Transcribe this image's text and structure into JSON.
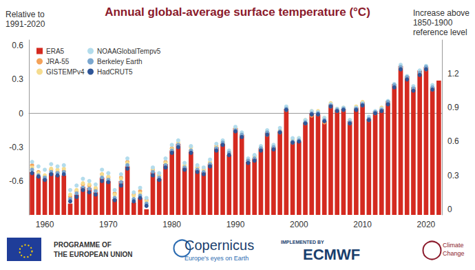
{
  "chart_data": {
    "type": "bar",
    "title": "Annual global-average surface temperature (°C)",
    "ylabel": "Relative to\n1991-2020",
    "y2label": "Increase above\n1850-1900\nreference level",
    "categories": [
      null,
      null,
      "1960",
      null,
      null,
      null,
      null,
      null,
      null,
      null,
      null,
      null,
      "1970",
      null,
      null,
      null,
      null,
      null,
      null,
      null,
      null,
      null,
      "1980",
      null,
      null,
      null,
      null,
      null,
      null,
      null,
      null,
      null,
      "1990",
      null,
      null,
      null,
      null,
      null,
      null,
      null,
      null,
      null,
      "2000",
      null,
      null,
      null,
      null,
      null,
      null,
      null,
      null,
      null,
      "2010",
      null,
      null,
      null,
      null,
      null,
      null,
      null,
      null,
      null,
      "2020",
      null,
      null
    ],
    "ylim": [
      -0.9,
      0.65
    ],
    "yticks": [
      -0.6,
      -0.3,
      0,
      0.3,
      0.6
    ],
    "y2lim": [
      -0.05,
      1.5
    ],
    "y2ticks": [
      0,
      0.3,
      0.6,
      0.9,
      1.2
    ],
    "grid": false,
    "legend": "top-left",
    "series": [
      {
        "name": "ERA5",
        "type": "bar",
        "color": "#d42a20",
        "values": [
          -0.52,
          -0.56,
          -0.58,
          -0.53,
          -0.55,
          -0.55,
          -0.8,
          -0.72,
          -0.65,
          -0.66,
          -0.7,
          -0.57,
          -0.6,
          -0.76,
          -0.6,
          -0.47,
          -0.79,
          -0.75,
          -0.85,
          -0.52,
          -0.58,
          -0.45,
          -0.33,
          -0.27,
          -0.48,
          -0.34,
          -0.5,
          -0.52,
          -0.45,
          -0.3,
          -0.27,
          -0.37,
          -0.13,
          -0.19,
          -0.43,
          -0.4,
          -0.31,
          -0.17,
          -0.3,
          -0.16,
          0.04,
          -0.25,
          -0.25,
          -0.08,
          0.0,
          -0.01,
          -0.07,
          0.08,
          0.03,
          0.04,
          -0.07,
          0.05,
          0.1,
          -0.05,
          0.02,
          0.04,
          0.11,
          0.26,
          0.42,
          0.33,
          0.23,
          0.38,
          0.41,
          0.23,
          0.29
        ]
      },
      {
        "name": "JRA-55",
        "type": "scatter",
        "marker": "circle",
        "color": "#f4a259",
        "values": [
          -0.46,
          -0.52,
          -0.56,
          -0.5,
          -0.52,
          -0.51,
          -0.74,
          -0.69,
          -0.63,
          -0.64,
          -0.67,
          -0.54,
          -0.57,
          -0.71,
          -0.57,
          -0.43,
          -0.72,
          -0.69,
          -0.77,
          -0.5,
          -0.55,
          -0.43,
          -0.31,
          -0.29,
          -0.47,
          -0.33,
          -0.48,
          -0.5,
          -0.44,
          -0.29,
          -0.27,
          -0.36,
          -0.15,
          -0.2,
          -0.42,
          -0.38,
          -0.31,
          -0.19,
          -0.31,
          -0.17,
          0.03,
          -0.26,
          -0.24,
          -0.09,
          -0.02,
          -0.01,
          -0.08,
          0.06,
          0.02,
          0.03,
          -0.09,
          0.04,
          0.07,
          -0.06,
          0.0,
          0.03,
          0.09,
          0.24,
          0.4,
          0.31,
          0.21,
          0.35,
          0.39,
          0.21,
          null
        ]
      },
      {
        "name": "GISTEMPv4",
        "type": "scatter",
        "marker": "circle",
        "color": "#f5dc8f",
        "values": [
          -0.48,
          -0.53,
          -0.55,
          -0.49,
          -0.5,
          -0.49,
          -0.72,
          -0.68,
          -0.62,
          -0.63,
          -0.66,
          -0.54,
          -0.56,
          -0.72,
          -0.58,
          -0.44,
          -0.73,
          -0.71,
          -0.78,
          -0.49,
          -0.55,
          -0.44,
          -0.32,
          -0.26,
          -0.46,
          -0.3,
          -0.48,
          -0.5,
          -0.43,
          -0.3,
          -0.25,
          -0.34,
          -0.13,
          -0.18,
          -0.41,
          -0.39,
          -0.3,
          -0.16,
          -0.29,
          -0.15,
          0.05,
          -0.23,
          -0.22,
          -0.06,
          0.02,
          0.02,
          -0.04,
          0.09,
          0.04,
          0.05,
          -0.06,
          0.06,
          0.1,
          -0.04,
          0.01,
          0.05,
          0.1,
          0.25,
          0.41,
          0.32,
          0.22,
          0.36,
          0.4,
          0.22,
          null
        ]
      },
      {
        "name": "NOAAGlobalTempv5",
        "type": "scatter",
        "marker": "circle",
        "color": "#b3dcec",
        "values": [
          -0.43,
          -0.47,
          -0.5,
          -0.45,
          -0.47,
          -0.46,
          -0.68,
          -0.64,
          -0.58,
          -0.6,
          -0.63,
          -0.5,
          -0.53,
          -0.68,
          -0.54,
          -0.4,
          -0.7,
          -0.66,
          -0.75,
          -0.48,
          -0.53,
          -0.4,
          -0.28,
          -0.24,
          -0.44,
          -0.29,
          -0.46,
          -0.48,
          -0.41,
          -0.27,
          -0.24,
          -0.33,
          -0.12,
          -0.17,
          -0.4,
          -0.37,
          -0.29,
          -0.15,
          -0.28,
          -0.13,
          0.06,
          -0.22,
          -0.22,
          -0.06,
          0.02,
          0.01,
          -0.04,
          0.08,
          0.04,
          0.05,
          -0.06,
          0.05,
          0.09,
          -0.03,
          0.02,
          0.04,
          0.11,
          0.26,
          0.43,
          0.33,
          0.24,
          0.38,
          0.42,
          0.25,
          null
        ]
      },
      {
        "name": "Berkeley Earth",
        "type": "scatter",
        "marker": "circle",
        "color": "#7ba7cf",
        "values": [
          -0.5,
          -0.55,
          -0.57,
          -0.52,
          -0.53,
          -0.52,
          -0.76,
          -0.71,
          -0.66,
          -0.67,
          -0.69,
          -0.57,
          -0.59,
          -0.75,
          -0.61,
          -0.46,
          -0.76,
          -0.73,
          -0.8,
          -0.52,
          -0.57,
          -0.46,
          -0.33,
          -0.28,
          -0.48,
          -0.33,
          -0.5,
          -0.52,
          -0.45,
          -0.31,
          -0.26,
          -0.35,
          -0.15,
          -0.19,
          -0.42,
          -0.4,
          -0.31,
          -0.17,
          -0.3,
          -0.16,
          0.04,
          -0.25,
          -0.24,
          -0.08,
          0.0,
          0.0,
          -0.06,
          0.07,
          0.03,
          0.04,
          -0.08,
          0.04,
          0.08,
          -0.05,
          0.01,
          0.03,
          0.1,
          0.25,
          0.41,
          0.32,
          0.22,
          0.36,
          0.41,
          0.23,
          null
        ]
      },
      {
        "name": "HadCRUT5",
        "type": "scatter",
        "marker": "circle",
        "color": "#2f5597",
        "values": [
          -0.53,
          -0.56,
          -0.59,
          -0.54,
          -0.55,
          -0.54,
          -0.78,
          -0.74,
          -0.68,
          -0.7,
          -0.72,
          -0.6,
          -0.61,
          -0.77,
          -0.64,
          -0.49,
          -0.78,
          -0.75,
          -0.82,
          -0.55,
          -0.59,
          -0.48,
          -0.35,
          -0.3,
          -0.5,
          -0.35,
          -0.52,
          -0.54,
          -0.47,
          -0.33,
          -0.28,
          -0.37,
          -0.16,
          -0.21,
          -0.44,
          -0.42,
          -0.33,
          -0.19,
          -0.32,
          -0.17,
          0.03,
          -0.26,
          -0.25,
          -0.09,
          -0.01,
          -0.01,
          -0.07,
          0.06,
          0.02,
          0.03,
          -0.09,
          0.03,
          0.07,
          -0.06,
          0.0,
          0.02,
          0.08,
          0.23,
          0.39,
          0.3,
          0.2,
          0.34,
          0.39,
          0.21,
          null
        ]
      }
    ]
  },
  "footer": {
    "eu": [
      "PROGRAMME OF",
      "THE EUROPEAN UNION"
    ],
    "copernicus": [
      "Copernicus",
      "Europe's eyes on Earth"
    ],
    "ecmwf": [
      "IMPLEMENTED BY",
      "ECMWF"
    ],
    "c3s": [
      "Climate",
      "Change"
    ]
  }
}
